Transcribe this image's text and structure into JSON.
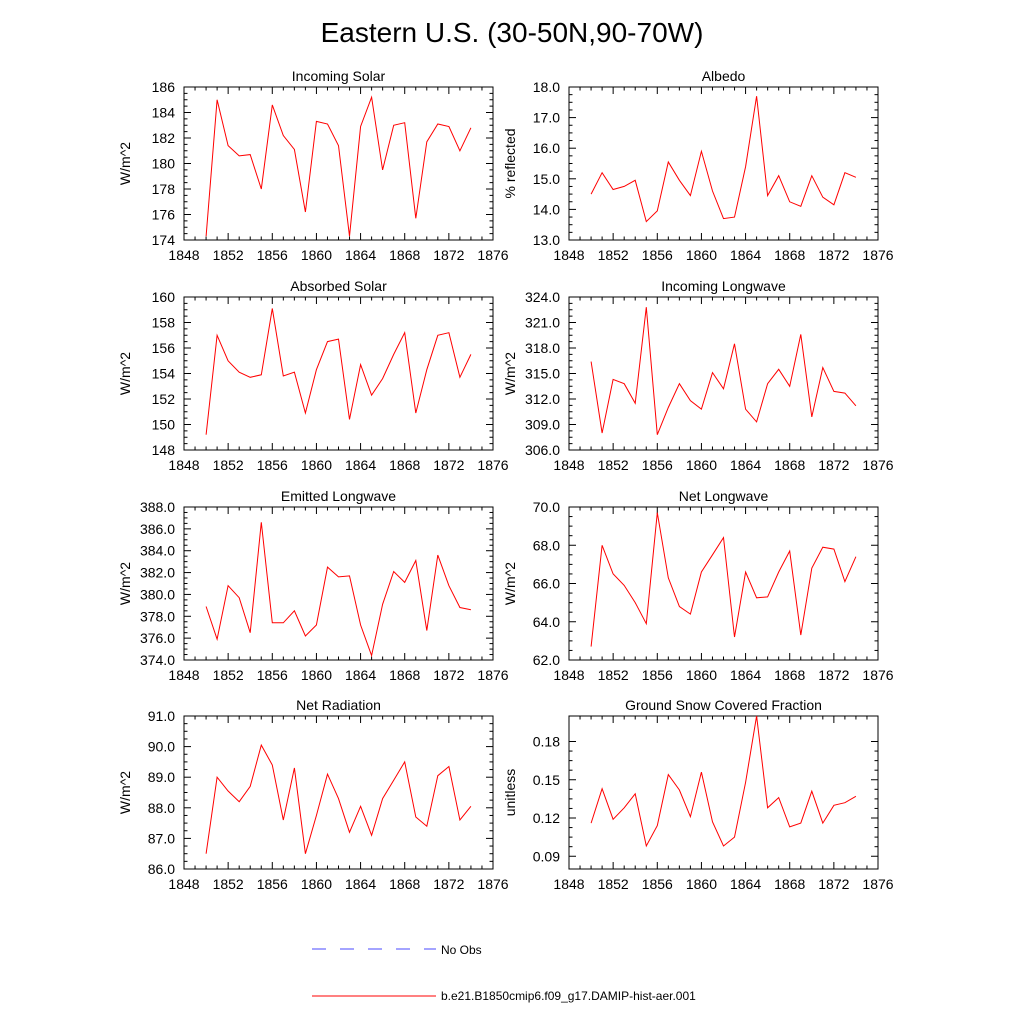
{
  "title": "Eastern U.S. (30-50N,90-70W)",
  "legend": {
    "obs_label": "No Obs",
    "obs_color": "#4a4aff",
    "model_label": "b.e21.B1850cmip6.f09_g17.DAMIP-hist-aer.001",
    "model_color": "#ff0000"
  },
  "chart_data": [
    {
      "type": "line",
      "title": "Incoming Solar",
      "ylabel": "W/m^2",
      "xlim": [
        1848,
        1876
      ],
      "ylim": [
        174,
        186
      ],
      "xticks": [
        "1848",
        "1852",
        "1856",
        "1860",
        "1864",
        "1868",
        "1872",
        "1876"
      ],
      "yticks": [
        "174",
        "176",
        "178",
        "180",
        "182",
        "184",
        "186"
      ],
      "x": [
        1850,
        1851,
        1852,
        1853,
        1854,
        1855,
        1856,
        1857,
        1858,
        1859,
        1860,
        1861,
        1862,
        1863,
        1864,
        1865,
        1866,
        1867,
        1868,
        1869,
        1870,
        1871,
        1872,
        1873,
        1874
      ],
      "values": [
        174.3,
        185.0,
        181.4,
        180.6,
        180.7,
        178.0,
        184.6,
        182.2,
        181.1,
        176.2,
        183.3,
        183.1,
        181.4,
        174.3,
        182.9,
        185.2,
        179.5,
        183.0,
        183.2,
        175.7,
        181.7,
        183.1,
        182.9,
        181.0,
        182.8
      ]
    },
    {
      "type": "line",
      "title": "Albedo",
      "ylabel": "% reflected",
      "xlim": [
        1848,
        1876
      ],
      "ylim": [
        13.0,
        18.0
      ],
      "xticks": [
        "1848",
        "1852",
        "1856",
        "1860",
        "1864",
        "1868",
        "1872",
        "1876"
      ],
      "yticks": [
        "13.0",
        "14.0",
        "15.0",
        "16.0",
        "17.0",
        "18.0"
      ],
      "x": [
        1850,
        1851,
        1852,
        1853,
        1854,
        1855,
        1856,
        1857,
        1858,
        1859,
        1860,
        1861,
        1862,
        1863,
        1864,
        1865,
        1866,
        1867,
        1868,
        1869,
        1870,
        1871,
        1872,
        1873,
        1874
      ],
      "values": [
        14.5,
        15.2,
        14.65,
        14.75,
        14.95,
        13.6,
        13.95,
        15.55,
        14.95,
        14.45,
        15.9,
        14.6,
        13.7,
        13.75,
        15.4,
        17.7,
        14.45,
        15.1,
        14.25,
        14.1,
        15.1,
        14.4,
        14.15,
        15.2,
        15.05
      ]
    },
    {
      "type": "line",
      "title": "Absorbed Solar",
      "ylabel": "W/m^2",
      "xlim": [
        1848,
        1876
      ],
      "ylim": [
        148,
        160
      ],
      "xticks": [
        "1848",
        "1852",
        "1856",
        "1860",
        "1864",
        "1868",
        "1872",
        "1876"
      ],
      "yticks": [
        "148",
        "150",
        "152",
        "154",
        "156",
        "158",
        "160"
      ],
      "x": [
        1850,
        1851,
        1852,
        1853,
        1854,
        1855,
        1856,
        1857,
        1858,
        1859,
        1860,
        1861,
        1862,
        1863,
        1864,
        1865,
        1866,
        1867,
        1868,
        1869,
        1870,
        1871,
        1872,
        1873,
        1874
      ],
      "values": [
        149.2,
        157.0,
        155.0,
        154.1,
        153.7,
        153.9,
        159.1,
        153.8,
        154.1,
        150.9,
        154.3,
        156.5,
        156.7,
        150.4,
        154.7,
        152.3,
        153.6,
        155.5,
        157.2,
        150.9,
        154.3,
        157.0,
        157.2,
        153.7,
        155.5
      ]
    },
    {
      "type": "line",
      "title": "Incoming Longwave",
      "ylabel": "W/m^2",
      "xlim": [
        1848,
        1876
      ],
      "ylim": [
        306.0,
        324.0
      ],
      "xticks": [
        "1848",
        "1852",
        "1856",
        "1860",
        "1864",
        "1868",
        "1872",
        "1876"
      ],
      "yticks": [
        "306.0",
        "309.0",
        "312.0",
        "315.0",
        "318.0",
        "321.0",
        "324.0"
      ],
      "x": [
        1850,
        1851,
        1852,
        1853,
        1854,
        1855,
        1856,
        1857,
        1858,
        1859,
        1860,
        1861,
        1862,
        1863,
        1864,
        1865,
        1866,
        1867,
        1868,
        1869,
        1870,
        1871,
        1872,
        1873,
        1874
      ],
      "values": [
        316.4,
        308.0,
        314.3,
        313.8,
        311.5,
        322.8,
        307.8,
        311.0,
        313.8,
        311.8,
        310.8,
        315.1,
        313.2,
        318.5,
        310.8,
        309.3,
        313.8,
        315.5,
        313.5,
        319.6,
        309.9,
        315.7,
        312.9,
        312.7,
        311.2
      ]
    },
    {
      "type": "line",
      "title": "Emitted Longwave",
      "ylabel": "W/m^2",
      "xlim": [
        1848,
        1876
      ],
      "ylim": [
        374.0,
        388.0
      ],
      "xticks": [
        "1848",
        "1852",
        "1856",
        "1860",
        "1864",
        "1868",
        "1872",
        "1876"
      ],
      "yticks": [
        "374.0",
        "376.0",
        "378.0",
        "380.0",
        "382.0",
        "384.0",
        "386.0",
        "388.0"
      ],
      "x": [
        1850,
        1851,
        1852,
        1853,
        1854,
        1855,
        1856,
        1857,
        1858,
        1859,
        1860,
        1861,
        1862,
        1863,
        1864,
        1865,
        1866,
        1867,
        1868,
        1869,
        1870,
        1871,
        1872,
        1873,
        1874
      ],
      "values": [
        378.9,
        375.9,
        380.8,
        379.7,
        376.5,
        386.6,
        377.4,
        377.4,
        378.5,
        376.2,
        377.2,
        382.5,
        381.6,
        381.7,
        377.2,
        374.4,
        379.1,
        382.1,
        381.1,
        383.1,
        376.7,
        383.6,
        380.8,
        378.8,
        378.6
      ]
    },
    {
      "type": "line",
      "title": "Net Longwave",
      "ylabel": "W/m^2",
      "xlim": [
        1848,
        1876
      ],
      "ylim": [
        62.0,
        70.0
      ],
      "xticks": [
        "1848",
        "1852",
        "1856",
        "1860",
        "1864",
        "1868",
        "1872",
        "1876"
      ],
      "yticks": [
        "62.0",
        "64.0",
        "66.0",
        "68.0",
        "70.0"
      ],
      "x": [
        1850,
        1851,
        1852,
        1853,
        1854,
        1855,
        1856,
        1857,
        1858,
        1859,
        1860,
        1861,
        1862,
        1863,
        1864,
        1865,
        1866,
        1867,
        1868,
        1869,
        1870,
        1871,
        1872,
        1873,
        1874
      ],
      "values": [
        62.7,
        68.0,
        66.5,
        65.9,
        65.0,
        63.9,
        69.7,
        66.3,
        64.8,
        64.4,
        66.6,
        67.5,
        68.4,
        63.2,
        66.6,
        65.25,
        65.3,
        66.6,
        67.7,
        63.3,
        66.8,
        67.9,
        67.8,
        66.1,
        67.4
      ]
    },
    {
      "type": "line",
      "title": "Net Radiation",
      "ylabel": "W/m^2",
      "xlim": [
        1848,
        1876
      ],
      "ylim": [
        86.0,
        91.0
      ],
      "xticks": [
        "1848",
        "1852",
        "1856",
        "1860",
        "1864",
        "1868",
        "1872",
        "1876"
      ],
      "yticks": [
        "86.0",
        "87.0",
        "88.0",
        "89.0",
        "90.0",
        "91.0"
      ],
      "x": [
        1850,
        1851,
        1852,
        1853,
        1854,
        1855,
        1856,
        1857,
        1858,
        1859,
        1860,
        1861,
        1862,
        1863,
        1864,
        1865,
        1866,
        1867,
        1868,
        1869,
        1870,
        1871,
        1872,
        1873,
        1874
      ],
      "values": [
        86.5,
        89.0,
        88.55,
        88.2,
        88.7,
        90.05,
        89.4,
        87.6,
        89.3,
        86.5,
        87.75,
        89.1,
        88.3,
        87.2,
        88.05,
        87.1,
        88.3,
        88.9,
        89.5,
        87.7,
        87.4,
        89.05,
        89.35,
        87.6,
        88.05
      ]
    },
    {
      "type": "line",
      "title": "Ground Snow Covered Fraction",
      "ylabel": "unitless",
      "xlim": [
        1848,
        1876
      ],
      "ylim": [
        0.08,
        0.2
      ],
      "xticks": [
        "1848",
        "1852",
        "1856",
        "1860",
        "1864",
        "1868",
        "1872",
        "1876"
      ],
      "yticks": [
        "0.09",
        "0.12",
        "0.15",
        "0.18"
      ],
      "ytick_values": [
        0.09,
        0.12,
        0.15,
        0.18
      ],
      "x": [
        1850,
        1851,
        1852,
        1853,
        1854,
        1855,
        1856,
        1857,
        1858,
        1859,
        1860,
        1861,
        1862,
        1863,
        1864,
        1865,
        1866,
        1867,
        1868,
        1869,
        1870,
        1871,
        1872,
        1873,
        1874
      ],
      "values": [
        0.116,
        0.143,
        0.119,
        0.128,
        0.139,
        0.098,
        0.114,
        0.154,
        0.142,
        0.121,
        0.156,
        0.117,
        0.098,
        0.105,
        0.148,
        0.2,
        0.128,
        0.136,
        0.113,
        0.116,
        0.141,
        0.116,
        0.13,
        0.132,
        0.137
      ]
    }
  ]
}
